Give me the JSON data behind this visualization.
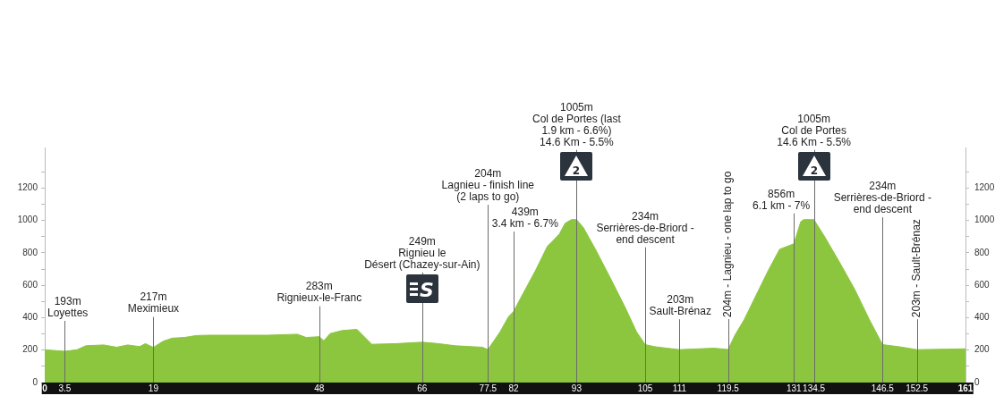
{
  "chart_data": {
    "type": "area",
    "color": "#8cc63f",
    "x": [
      0,
      3.5,
      5.6,
      7.2,
      10.3,
      12.6,
      14.5,
      16.6,
      17.6,
      19,
      20.7,
      22.3,
      24.4,
      26.5,
      28.5,
      33.7,
      38.9,
      44.2,
      45.7,
      48,
      48.8,
      49.9,
      52,
      54.6,
      57.2,
      61.3,
      66,
      68.6,
      71.8,
      76.5,
      77.5,
      78.5,
      79.6,
      81.1,
      82,
      83.2,
      85.8,
      87.9,
      89,
      90,
      91,
      92.1,
      93,
      94.2,
      96.3,
      98.8,
      101.5,
      103.5,
      105,
      106.7,
      111,
      117,
      119.5,
      120.7,
      122.3,
      124.4,
      126.5,
      128.5,
      131,
      132.2,
      132.7,
      134.5,
      136.4,
      138.9,
      141.6,
      144.2,
      146.5,
      149.4,
      152.5,
      161
    ],
    "values": [
      202,
      193,
      202,
      227,
      232,
      218,
      232,
      222,
      240,
      217,
      255,
      274,
      278,
      290,
      292,
      292,
      292,
      298,
      278,
      283,
      258,
      302,
      321,
      328,
      236,
      240,
      249,
      241,
      227,
      218,
      204,
      255,
      312,
      406,
      439,
      520,
      690,
      841,
      879,
      917,
      983,
      1005,
      1005,
      955,
      822,
      652,
      463,
      312,
      234,
      221,
      203,
      212,
      204,
      293,
      388,
      539,
      690,
      822,
      856,
      992,
      1005,
      1005,
      898,
      747,
      577,
      388,
      234,
      221,
      203,
      208
    ],
    "xlim": [
      0,
      161
    ],
    "xticks": [
      0,
      3.5,
      19,
      48,
      66,
      77.5,
      82,
      93,
      105,
      111,
      119.5,
      131,
      134.5,
      146.5,
      152.5,
      161
    ],
    "ylim": [
      0,
      1450
    ],
    "yticks": [
      0,
      {
        "value": 100,
        "label": null
      },
      200,
      {
        "value": 300,
        "label": null
      },
      400,
      {
        "value": 500,
        "label": null
      },
      600,
      {
        "value": 700,
        "label": null
      },
      800,
      {
        "value": 900,
        "label": null
      },
      1000,
      {
        "value": 1100,
        "label": null
      },
      1200,
      {
        "value": 1300,
        "label": null
      }
    ],
    "y2lim": [
      0,
      1450
    ],
    "y2ticks": [
      0,
      {
        "value": 100,
        "label": null
      },
      200,
      {
        "value": 300,
        "label": null
      },
      400,
      {
        "value": 500,
        "label": null
      },
      600,
      {
        "value": 700,
        "label": null
      },
      800,
      {
        "value": 900,
        "label": null
      },
      1000,
      {
        "value": 1100,
        "label": null
      },
      1200,
      {
        "value": 1300,
        "label": null
      }
    ],
    "grid": false,
    "legend": false,
    "ref_lines": [
      {
        "axis": "x",
        "value": 3.5,
        "label": "193m\nLoyettes"
      },
      {
        "axis": "x",
        "value": 19,
        "label": "217m\nMeximieux"
      },
      {
        "axis": "x",
        "value": 48,
        "label": "283m\nRignieux-le-Franc"
      },
      {
        "axis": "x",
        "value": 66,
        "label": "249m\nRignieu le\nDésert (Chazey-sur-Ain)"
      },
      {
        "axis": "x",
        "value": 77.5,
        "label": "204m\nLagnieu - finish line\n(2 laps to go)"
      },
      {
        "axis": "x",
        "value": 82,
        "label": "439m\n3.4 km - 6.7%"
      },
      {
        "axis": "x",
        "value": 93,
        "label": "1005m\nCol de Portes (last\n1.9 km - 6.6%)\n14.6 Km - 5.5%"
      },
      {
        "axis": "x",
        "value": 105,
        "label": "234m\nSerrières-de-Briord -\nend descent"
      },
      {
        "axis": "x",
        "value": 111,
        "label": "203m\nSault-Brénaz"
      },
      {
        "axis": "x",
        "value": 119.5,
        "label": "204m - Lagnieu - one lap to go"
      },
      {
        "axis": "x",
        "value": 131,
        "label": "856m\n6.1 km - 7%"
      },
      {
        "axis": "x",
        "value": 134.5,
        "label": "1005m\nCol de Portes\n14.6 Km - 5.5%"
      },
      {
        "axis": "x",
        "value": 146.5,
        "label": "234m\nSerrières-de-Briord -\nend descent"
      },
      {
        "axis": "x",
        "value": 152.5,
        "label": "203m - Sault-Brénaz"
      }
    ],
    "annotations": [
      {
        "text": "S",
        "x": 66
      },
      {
        "text": "2",
        "x": 93
      },
      {
        "text": "2",
        "x": 134.5
      }
    ]
  }
}
